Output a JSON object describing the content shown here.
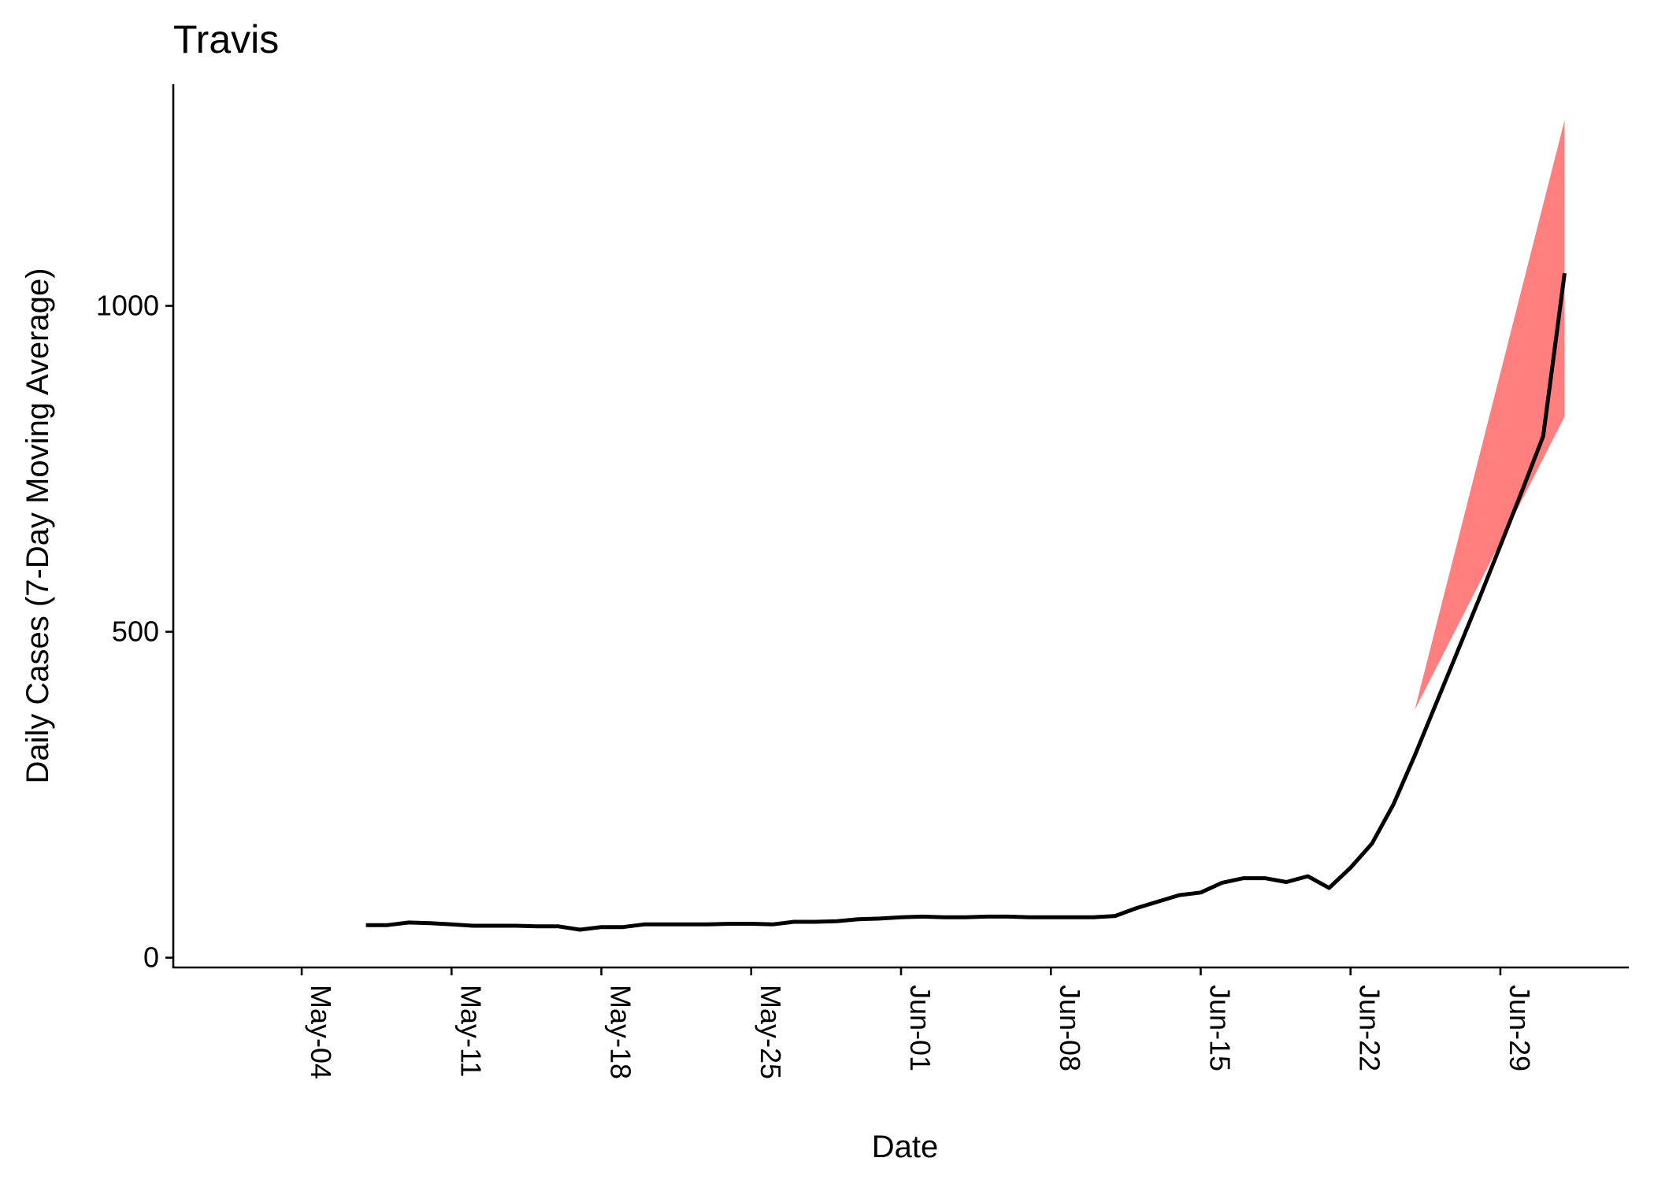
{
  "chart_data": {
    "type": "line",
    "title": "Travis",
    "xlabel": "Date",
    "ylabel": "Daily Cases (7-Day Moving Average)",
    "x_ticks": [
      "May-04",
      "May-11",
      "May-18",
      "May-25",
      "Jun-01",
      "Jun-08",
      "Jun-15",
      "Jun-22",
      "Jun-29"
    ],
    "y_ticks": [
      0,
      500,
      1000
    ],
    "xlim": [
      "2020-04-28",
      "2020-07-05"
    ],
    "ylim": [
      -15,
      1340
    ],
    "grid": false,
    "colors": {
      "line": "#000000",
      "band": "#FF7F7F"
    },
    "series": [
      {
        "x": [
          "2020-05-07",
          "2020-05-08",
          "2020-05-09",
          "2020-05-10",
          "2020-05-11",
          "2020-05-12",
          "2020-05-13",
          "2020-05-14",
          "2020-05-15",
          "2020-05-16",
          "2020-05-17",
          "2020-05-18",
          "2020-05-19",
          "2020-05-20",
          "2020-05-21",
          "2020-05-22",
          "2020-05-23",
          "2020-05-24",
          "2020-05-25",
          "2020-05-26",
          "2020-05-27",
          "2020-05-28",
          "2020-05-29",
          "2020-05-30",
          "2020-05-31",
          "2020-06-01",
          "2020-06-02",
          "2020-06-03",
          "2020-06-04",
          "2020-06-05",
          "2020-06-06",
          "2020-06-07",
          "2020-06-08",
          "2020-06-09",
          "2020-06-10",
          "2020-06-11",
          "2020-06-12",
          "2020-06-13",
          "2020-06-14",
          "2020-06-15",
          "2020-06-16",
          "2020-06-17",
          "2020-06-18",
          "2020-06-19",
          "2020-06-20",
          "2020-06-21",
          "2020-06-22",
          "2020-06-23",
          "2020-06-24",
          "2020-06-25",
          "2020-06-26",
          "2020-06-27",
          "2020-06-28",
          "2020-06-29",
          "2020-06-30",
          "2020-07-01",
          "2020-07-02"
        ],
        "y": [
          50,
          50,
          54,
          53,
          51,
          49,
          49,
          49,
          48,
          48,
          43,
          47,
          47,
          51,
          51,
          51,
          51,
          52,
          52,
          51,
          55,
          55,
          56,
          59,
          60,
          62,
          63,
          62,
          62,
          63,
          63,
          62,
          62,
          62,
          62,
          64,
          76,
          86,
          96,
          100,
          115,
          122,
          122,
          116,
          125,
          107,
          138,
          175,
          235,
          310,
          390,
          470,
          550,
          632,
          715,
          800,
          1050
        ]
      }
    ],
    "band": {
      "x": [
        "2020-06-25",
        "2020-07-02"
      ],
      "lower": [
        380,
        830
      ],
      "upper": [
        380,
        1285
      ]
    }
  }
}
